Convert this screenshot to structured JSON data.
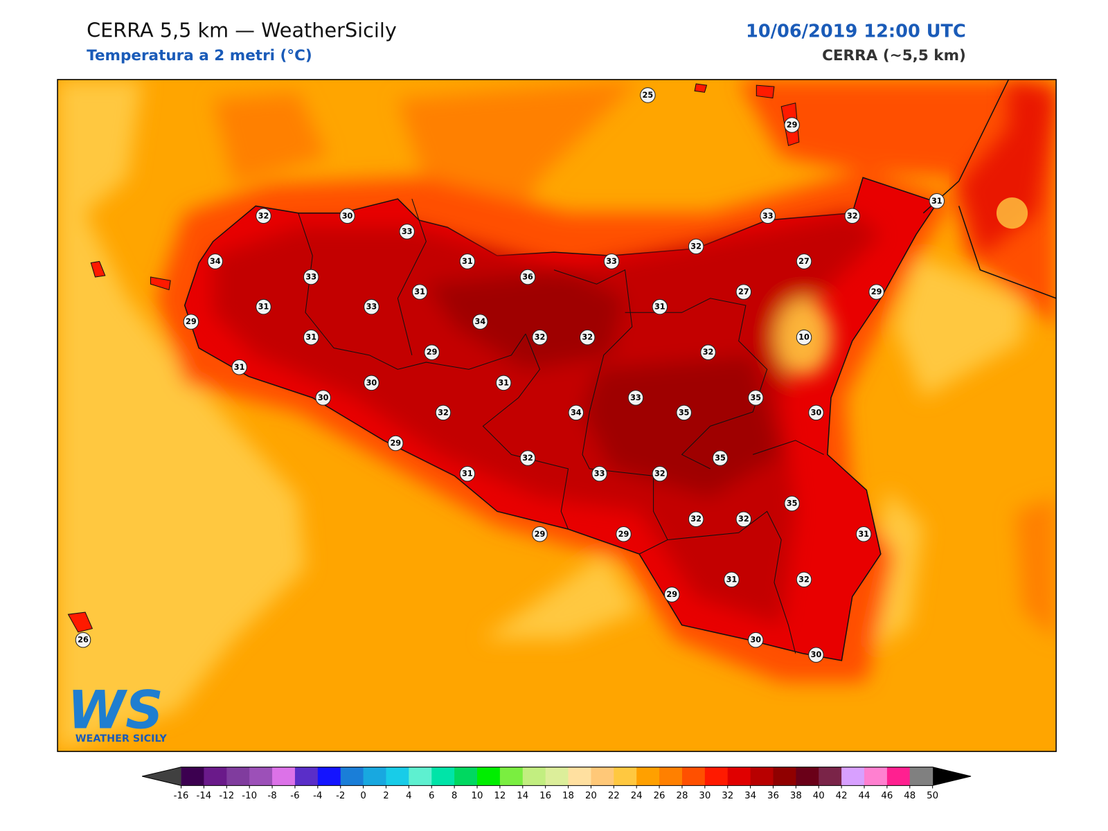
{
  "header": {
    "title": "CERRA 5,5 km — WeatherSicily",
    "subtitle": "Temperatura a 2 metri (°C)",
    "datetime": "10/06/2019 12:00 UTC",
    "model": "CERRA (~5,5 km)"
  },
  "stations": [
    25,
    29,
    32,
    30,
    33,
    33,
    32,
    31,
    34,
    31,
    33,
    32,
    27,
    33,
    36,
    31,
    27,
    29,
    31,
    33,
    31,
    29,
    34,
    31,
    32,
    32,
    10,
    29,
    32,
    31,
    30,
    31,
    30,
    33,
    35,
    32,
    34,
    35,
    30,
    29,
    32,
    35,
    31,
    33,
    32,
    35,
    32,
    32,
    31,
    29,
    29,
    31,
    32,
    29,
    26,
    30,
    30
  ],
  "logo": {
    "mark": "WS",
    "text": "WEATHER SICILY"
  },
  "colorbar": {
    "ticks": [
      -16,
      -14,
      -12,
      -10,
      -8,
      -6,
      -4,
      -2,
      0,
      2,
      4,
      6,
      8,
      10,
      12,
      14,
      16,
      18,
      20,
      22,
      24,
      26,
      28,
      30,
      32,
      34,
      36,
      38,
      40,
      42,
      44,
      46,
      48,
      50
    ],
    "under": "#404040",
    "over": "#000000",
    "colors": [
      "#3c0050",
      "#6a1a8a",
      "#803c9e",
      "#9c50b8",
      "#dc72e8",
      "#5a2ec8",
      "#1414ff",
      "#1a7ed8",
      "#18a8e0",
      "#18cce8",
      "#5ef0d0",
      "#00e4a8",
      "#00d860",
      "#00ee00",
      "#7aee40",
      "#c2ee80",
      "#dcee9a",
      "#ffe0a0",
      "#ffc878",
      "#ffc840",
      "#ffa000",
      "#ff8000",
      "#ff5000",
      "#ff1a00",
      "#e00000",
      "#b80000",
      "#900000",
      "#6a0018",
      "#7a2448",
      "#d8a0ff",
      "#ff80d0",
      "#ff2090",
      "#808080",
      "#383838"
    ]
  }
}
